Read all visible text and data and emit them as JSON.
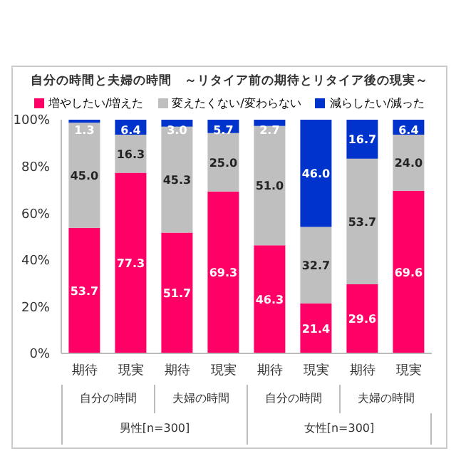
{
  "chart_data": {
    "type": "bar",
    "title": "自分の時間と夫婦の時間　～リタイア前の期待とリタイア後の現実～",
    "categories": [
      "期待",
      "現実",
      "期待",
      "現実",
      "期待",
      "現実",
      "期待",
      "現実"
    ],
    "series": [
      {
        "name": "増やしたい/増えた",
        "color": "#ff0066",
        "values": [
          53.7,
          77.3,
          51.7,
          69.3,
          46.3,
          21.4,
          29.6,
          69.6
        ],
        "value_labels": [
          "53.7",
          "77.3",
          "51.7",
          "69.3",
          "46.3",
          "21.4",
          "29.6",
          "69.6"
        ]
      },
      {
        "name": "変えたくない/変わらない",
        "color": "#bfbfbf",
        "values": [
          45.0,
          16.3,
          45.3,
          25.0,
          51.0,
          32.7,
          53.7,
          24.0
        ],
        "value_labels": [
          "45.0",
          "16.3",
          "45.3",
          "25.0",
          "51.0",
          "32.7",
          "53.7",
          "24.0"
        ]
      },
      {
        "name": "減らしたい/減った",
        "color": "#0033cc",
        "values": [
          1.3,
          6.4,
          3.0,
          5.7,
          2.7,
          46.0,
          16.7,
          6.4
        ],
        "value_labels": [
          "1.3",
          "6.4",
          "3.0",
          "5.7",
          "2.7",
          "46.0",
          "16.7",
          "6.4"
        ]
      }
    ],
    "stacked": true,
    "ylim": [
      0,
      100
    ],
    "yticks": [
      {
        "value": 0,
        "label": "0%"
      },
      {
        "value": 20,
        "label": "20%"
      },
      {
        "value": 40,
        "label": "40%"
      },
      {
        "value": 60,
        "label": "60%"
      },
      {
        "value": 80,
        "label": "80%"
      },
      {
        "value": 100,
        "label": "100%"
      }
    ],
    "legend": "top",
    "grid": false,
    "annotations": [
      "自分の時間",
      "夫婦の時間",
      "自分の時間",
      "夫婦の時間",
      "男性[n=300]",
      "女性[n=300]"
    ]
  }
}
